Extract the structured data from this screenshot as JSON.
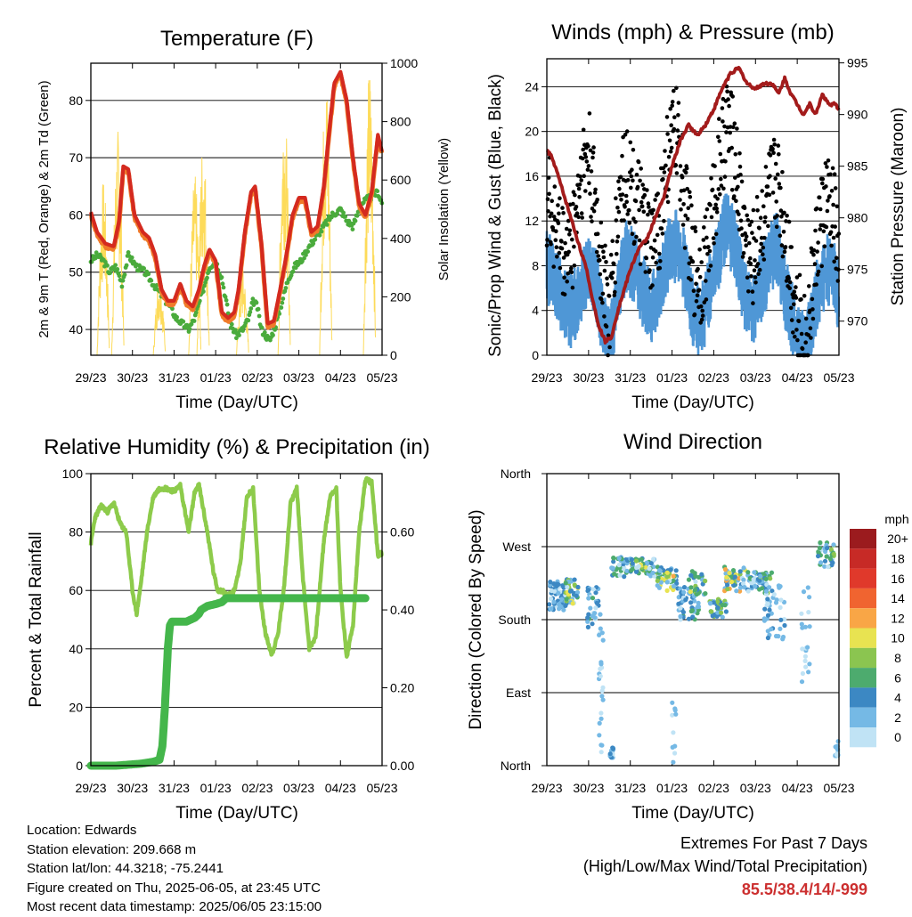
{
  "xticks": [
    "29/23",
    "30/23",
    "31/23",
    "01/23",
    "02/23",
    "03/23",
    "04/23",
    "05/23"
  ],
  "xlabel": "Time (Day/UTC)",
  "colors": {
    "temp": "#d42a1f",
    "temp9m": "#f07b2a",
    "dew": "#4aab3c",
    "solar": "#fddb5a",
    "wind": "#000000",
    "gust": "#4f97d6",
    "pressure": "#a31b1b",
    "rh": "#8dcb4b",
    "precip": "#44b64b"
  },
  "chart_data": [
    {
      "type": "line",
      "title": "Temperature (F)",
      "xlabel": "Time (Day/UTC)",
      "ylabel": "2m & 9m T (Red, Orange) & 2m Td (Green)",
      "ylabel_right": "Solar Insolation (Yellow)",
      "xlim": [
        0,
        7
      ],
      "ylim": [
        35.5,
        86.5
      ],
      "ylim_right": [
        0,
        1000
      ],
      "yticks": [
        40,
        50,
        60,
        70,
        80
      ],
      "yticks_right": [
        0,
        200,
        400,
        600,
        800,
        1000
      ],
      "grid": true,
      "series": [
        {
          "key": "temp",
          "x": [
            0,
            0.15,
            0.35,
            0.55,
            0.68,
            0.78,
            0.9,
            1.05,
            1.25,
            1.4,
            1.55,
            1.7,
            1.85,
            2.0,
            2.15,
            2.3,
            2.45,
            2.6,
            2.72,
            2.85,
            3.0,
            3.15,
            3.3,
            3.45,
            3.55,
            3.7,
            3.85,
            3.95,
            4.1,
            4.25,
            4.4,
            4.55,
            4.7,
            4.85,
            5.0,
            5.15,
            5.3,
            5.45,
            5.6,
            5.72,
            5.85,
            6.0,
            6.15,
            6.3,
            6.45,
            6.6,
            6.75,
            6.9,
            7.0
          ],
          "y": [
            60.5,
            57,
            55,
            54.5,
            59,
            68.5,
            68,
            60,
            57,
            56,
            53,
            47,
            45,
            45,
            48,
            45,
            44,
            47,
            51,
            54,
            52,
            43,
            42,
            43,
            47,
            57,
            64,
            65,
            55,
            41,
            41.5,
            47,
            53,
            60,
            63,
            63,
            57,
            58,
            65,
            74,
            83,
            85,
            80,
            70,
            62,
            60,
            64,
            74,
            71
          ]
        },
        {
          "key": "dew",
          "x": [
            0,
            0.15,
            0.3,
            0.45,
            0.6,
            0.75,
            0.9,
            1.1,
            1.3,
            1.5,
            1.7,
            1.9,
            2.05,
            2.2,
            2.35,
            2.5,
            2.7,
            2.85,
            3.0,
            3.15,
            3.35,
            3.5,
            3.65,
            3.8,
            3.9,
            4.0,
            4.1,
            4.2,
            4.3,
            4.45,
            4.6,
            4.75,
            4.9,
            5.05,
            5.2,
            5.4,
            5.6,
            5.8,
            6.0,
            6.15,
            6.3,
            6.5,
            6.7,
            6.9,
            7.0
          ],
          "y": [
            52,
            53,
            52,
            50,
            51,
            48,
            53,
            51,
            50,
            48,
            46,
            44,
            42,
            41,
            40,
            42,
            47,
            51,
            52,
            49,
            41,
            39,
            40,
            42,
            45,
            44,
            40,
            39,
            38,
            41,
            45,
            49,
            51,
            52,
            54,
            56,
            58,
            60,
            61,
            59,
            58,
            62,
            63,
            64,
            62
          ]
        },
        {
          "key": "rh",
          "x": [
            0,
            0.1,
            0.25,
            0.4,
            0.55,
            0.7,
            0.85,
            1.0,
            1.1,
            1.2,
            1.35,
            1.5,
            1.65,
            1.8,
            2.0,
            2.15,
            2.35,
            2.5,
            2.6,
            2.8,
            2.95,
            3.05,
            3.15,
            3.3,
            3.45,
            3.6,
            3.75,
            3.9,
            4.05,
            4.2,
            4.35,
            4.5,
            4.65,
            4.8,
            4.95,
            5.1,
            5.25,
            5.4,
            5.5,
            5.6,
            5.75,
            5.9,
            6.0,
            6.15,
            6.3,
            6.45,
            6.6,
            6.75,
            6.9,
            7.0
          ],
          "y": [
            76,
            85,
            89,
            87,
            90,
            83,
            80,
            60,
            52,
            62,
            80,
            92,
            95,
            95,
            94,
            96,
            80,
            94,
            96,
            80,
            66,
            60,
            60,
            58,
            60,
            70,
            92,
            95,
            60,
            45,
            38,
            45,
            62,
            90,
            95,
            64,
            40,
            44,
            60,
            77,
            92,
            95,
            60,
            37,
            48,
            80,
            98,
            97,
            72,
            73
          ]
        },
        {
          "key": "precip",
          "x": [
            0,
            0.6,
            1.2,
            1.5,
            1.65,
            1.72,
            1.78,
            1.85,
            1.9,
            1.95,
            2.05,
            2.3,
            2.5,
            2.6,
            2.65,
            2.8,
            3.0,
            3.15,
            3.25,
            3.3,
            3.5,
            4.0,
            5.0,
            6.0,
            6.6
          ],
          "y": [
            0,
            0,
            0.005,
            0.01,
            0.015,
            0.05,
            0.15,
            0.3,
            0.36,
            0.37,
            0.37,
            0.37,
            0.38,
            0.39,
            0.4,
            0.41,
            0.415,
            0.42,
            0.43,
            0.43,
            0.43,
            0.43,
            0.43,
            0.43,
            0.43
          ]
        }
      ]
    },
    {
      "type": "line",
      "title": "Winds (mph) & Pressure (mb)",
      "xlabel": "Time (Day/UTC)",
      "ylabel": "Sonic/Prop Wind & Gust (Blue, Black)",
      "ylabel_right": "Station Pressure (Maroon)",
      "xlim": [
        0,
        7
      ],
      "ylim": [
        0,
        26.5
      ],
      "ylim_right": [
        966.7,
        995.4
      ],
      "yticks": [
        0,
        4,
        8,
        12,
        16,
        20,
        24
      ],
      "yticks_right": [
        970,
        975,
        980,
        985,
        990,
        995
      ],
      "grid": true,
      "series": [
        {
          "key": "pressure",
          "x": [
            0,
            0.1,
            0.2,
            0.35,
            0.5,
            0.65,
            0.8,
            0.95,
            1.1,
            1.25,
            1.4,
            1.55,
            1.7,
            1.85,
            2.0,
            2.2,
            2.4,
            2.6,
            2.8,
            3.0,
            3.2,
            3.4,
            3.6,
            3.8,
            4.0,
            4.2,
            4.4,
            4.6,
            4.8,
            5.0,
            5.2,
            5.4,
            5.55,
            5.7,
            5.85,
            6.0,
            6.15,
            6.3,
            6.45,
            6.6,
            6.75,
            6.9,
            7.0
          ],
          "y": [
            986.5,
            986,
            985,
            983,
            981,
            979,
            977,
            975,
            972,
            969.5,
            968,
            968.5,
            971,
            973,
            975,
            977,
            978,
            980,
            982,
            985,
            987.5,
            989,
            988,
            989,
            990.5,
            992.5,
            994,
            994.5,
            993,
            992.5,
            993,
            993,
            992,
            993.5,
            992,
            991,
            990,
            991,
            990,
            992,
            991,
            991,
            990.5
          ]
        },
        {
          "key": "wind",
          "x": [
            0,
            0.2,
            0.4,
            0.6,
            0.8,
            1.0,
            1.2,
            1.4,
            1.5,
            1.6,
            1.75,
            1.9,
            2.1,
            2.3,
            2.5,
            2.7,
            2.9,
            3.1,
            3.3,
            3.5,
            3.7,
            3.9,
            4.1,
            4.3,
            4.5,
            4.7,
            4.9,
            5.1,
            5.3,
            5.5,
            5.7,
            5.9,
            6.1,
            6.2,
            6.3,
            6.5,
            6.7,
            6.9,
            7.0
          ],
          "y": [
            8,
            7,
            5,
            4,
            6,
            8,
            6,
            2,
            1,
            3,
            7,
            9,
            8,
            6,
            4,
            6,
            9,
            10,
            8,
            4,
            3,
            6,
            9,
            12,
            10,
            6,
            4,
            6,
            8,
            10,
            6,
            3,
            1,
            0.5,
            2,
            6,
            8,
            7,
            5
          ]
        },
        {
          "key": "gust",
          "x": [
            0,
            0.2,
            0.4,
            0.6,
            0.8,
            1.0,
            1.2,
            1.4,
            1.5,
            1.6,
            1.75,
            1.9,
            2.1,
            2.3,
            2.5,
            2.7,
            2.9,
            3.1,
            3.3,
            3.5,
            3.7,
            3.9,
            4.1,
            4.3,
            4.5,
            4.7,
            4.9,
            5.1,
            5.3,
            5.5,
            5.7,
            5.9,
            6.1,
            6.2,
            6.3,
            6.5,
            6.7,
            6.9,
            7.0
          ],
          "y": [
            14,
            12,
            9,
            10,
            16,
            18,
            12,
            6,
            3,
            8,
            15,
            17,
            14,
            12,
            9,
            12,
            18,
            20,
            14,
            8,
            7,
            11,
            16,
            21,
            18,
            12,
            8,
            11,
            14,
            16,
            12,
            6,
            2,
            1,
            4,
            11,
            14,
            12,
            8
          ]
        }
      ]
    },
    {
      "type": "scatter",
      "title": "Wind Direction",
      "xlabel": "Time (Day/UTC)",
      "ylabel": "Direction (Colored By Speed)",
      "xlim": [
        0,
        7
      ],
      "yticks": [
        "North",
        "West",
        "South",
        "East",
        "North"
      ],
      "legend_title": "mph",
      "legend": [
        "20+",
        "18",
        "16",
        "14",
        "12",
        "10",
        "8",
        "6",
        "4",
        "2",
        "0"
      ],
      "legend_colors": [
        "#9b1b1e",
        "#c72a26",
        "#e0392b",
        "#f06430",
        "#f9a646",
        "#e8e351",
        "#8bc550",
        "#4dab6e",
        "#3c88c3",
        "#75b9e5",
        "#c0e3f5"
      ]
    }
  ],
  "rh_panel": {
    "title": "Relative Humidity (%) & Precipitation (in)",
    "ylabel": "Percent & Total Rainfall",
    "ylim": [
      0,
      100
    ],
    "ylim_right": [
      0,
      0.75
    ],
    "yticks": [
      0,
      20,
      40,
      60,
      80,
      100
    ],
    "yticks_right": [
      "0.00",
      "0.20",
      "0.40",
      "0.60"
    ]
  },
  "info": {
    "location": "Location: Edwards",
    "elevation": "Station elevation: 209.668 m",
    "latlon": "Station lat/lon: 44.3218; -75.2441",
    "created": "Figure created on Thu, 2025-06-05, at 23:45 UTC",
    "recent": "Most recent data timestamp: 2025/06/05 23:15:00"
  },
  "extremes": {
    "line1": "Extremes For Past 7 Days",
    "line2": "(High/Low/Max Wind/Total Precipitation)",
    "values": "85.5/38.4/14/-999"
  }
}
